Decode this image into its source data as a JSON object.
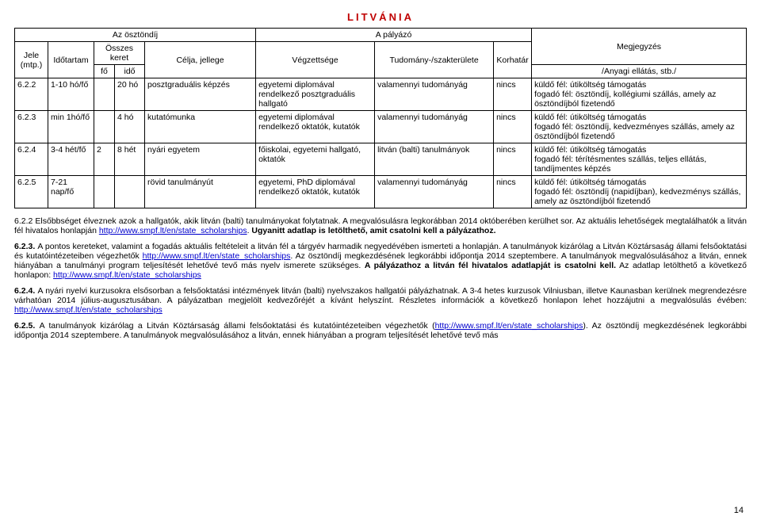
{
  "title": "LITVÁNIA",
  "header": {
    "h_osztondij": "Az ösztöndíj",
    "h_palyazo": "A pályázó",
    "h_megj": "Megjegyzés",
    "h_jele": "Jele (mtp.)",
    "h_idotartam": "Időtartam",
    "h_osszes": "Összes keret",
    "h_fo": "fő",
    "h_ido": "idő",
    "h_celja": "Célja, jellege",
    "h_vegzettseg": "Végzettsége",
    "h_tudomany": "Tudomány-/szakterülete",
    "h_korhatar": "Korhatár",
    "h_anyagi": "/Anyagi ellátás, stb./"
  },
  "rows": [
    {
      "jele": "6.2.2",
      "idotartam": "1-10 hó/fő",
      "fo": "",
      "ido": "20 hó",
      "celja": "posztgraduális képzés",
      "vegz": "egyetemi diplomával rendelkező posztgraduális hallgató",
      "tud": "valamennyi tudományág",
      "kor": "nincs",
      "megj": "küldő fél: útiköltség támogatás\nfogadó fél: ösztöndíj, kollégiumi szállás, amely az ösztöndíjból fizetendő"
    },
    {
      "jele": "6.2.3",
      "idotartam": "min 1hó/fő",
      "fo": "",
      "ido": "4 hó",
      "celja": "kutatómunka",
      "vegz": "egyetemi diplomával rendelkező oktatók, kutatók",
      "tud": "valamennyi tudományág",
      "kor": "nincs",
      "megj": "küldő fél: útiköltség támogatás\nfogadó fél: ösztöndíj, kedvezményes szállás, amely az ösztöndíjból fizetendő"
    },
    {
      "jele": "6.2.4",
      "idotartam": "3-4 hét/fő",
      "fo": "2",
      "ido": "8 hét",
      "celja": "nyári egyetem",
      "vegz": "főiskolai, egyetemi hallgató, oktatók",
      "tud": "litván (balti) tanulmányok",
      "kor": "nincs",
      "megj": "küldő fél: útiköltség támogatás\nfogadó fél: térítésmentes szállás, teljes ellátás, tandíjmentes képzés"
    },
    {
      "jele": "6.2.5",
      "idotartam": "7-21 nap/fő",
      "fo": "",
      "ido": "",
      "celja": "rövid tanulmányút",
      "vegz": "egyetemi, PhD diplomával rendelkező oktatók, kutatók",
      "tud": "valamennyi tudományág",
      "kor": "nincs",
      "megj": "küldő fél: útiköltség támogatás\nfogadó fél: ösztöndíj (napidíjban), kedvezménys szállás, amely az ösztöndíjból fizetendő"
    }
  ],
  "notes": {
    "n1a": "6.2.2 Elsőbbséget élveznek azok a hallgatók, akik litván (balti) tanulmányokat folytatnak. A megvalósulásra legkorábban 2014 októberében kerülhet sor. Az aktuális lehetőségek megtalálhatók a litván fél hivatalos honlapján ",
    "n1_link": "http://www.smpf.lt/en/state_scholarships",
    "n1b": ". ",
    "n1bold": "Ugyanitt adatlap is letölthető, amit csatolni kell a pályázathoz.",
    "n2a": "6.2.3. ",
    "n2b": "A pontos kereteket, valamint a fogadás aktuális feltételeit a litván fél a tárgyév harmadik negyedévében ismerteti a honlapján. A tanulmányok kizárólag a Litván Köztársaság állami felsőoktatási és kutatóintézeteiben végezhetők ",
    "n2_link": "http://www.smpf.lt/en/state_scholarships",
    "n2c": ". Az ösztöndíj megkezdésének legkorábbi időpontja 2014 szeptembere. A tanulmányok megvalósulásához a litván, ennek hiányában a tanulmányi program teljesítését lehetővé tevő más nyelv ismerete szükséges. ",
    "n2bold": "A pályázathoz a litván fél hivatalos adatlapját is csatolni kell.",
    "n2d": " Az adatlap letölthető a következő honlapon: ",
    "n2_link2": "http://www.smpf.lt/en/state_scholarships",
    "n3a": "6.2.4. ",
    "n3b": "A nyári nyelvi kurzusokra elsősorban a felsőoktatási intézmények litván (balti) nyelvszakos hallgatói pályázhatnak. A 3-4 hetes kurzusok Vilniusban, illetve Kaunasban kerülnek megrendezésre várhatóan 2014 július-augusztusában. A pályázatban megjelölt kedvezőréjét a kívánt helyszínt. Részletes információk a következő honlapon lehet hozzájutni a megvalósulás évében: ",
    "n3_link": "http://www.smpf.lt/en/state_scholarships",
    "n4a": "6.2.5. ",
    "n4b": "A tanulmányok kizárólag a Litván Köztársaság állami felsőoktatási és kutatóintézeteiben végezhetők (",
    "n4_link": "http://www.smpf.lt/en/state_scholarships",
    "n4c": "). Az ösztöndíj megkezdésének legkorábbi időpontja 2014 szeptembere. A tanulmányok megvalósulásához a litván, ennek hiányában a program teljesítését lehetővé tevő más"
  },
  "page": "14",
  "colwidths": {
    "jele": "42px",
    "idotartam": "58px",
    "fo": "26px",
    "ido": "38px",
    "celja": "140px",
    "vegz": "150px",
    "tud": "150px",
    "kor": "48px",
    "megj": "auto"
  }
}
